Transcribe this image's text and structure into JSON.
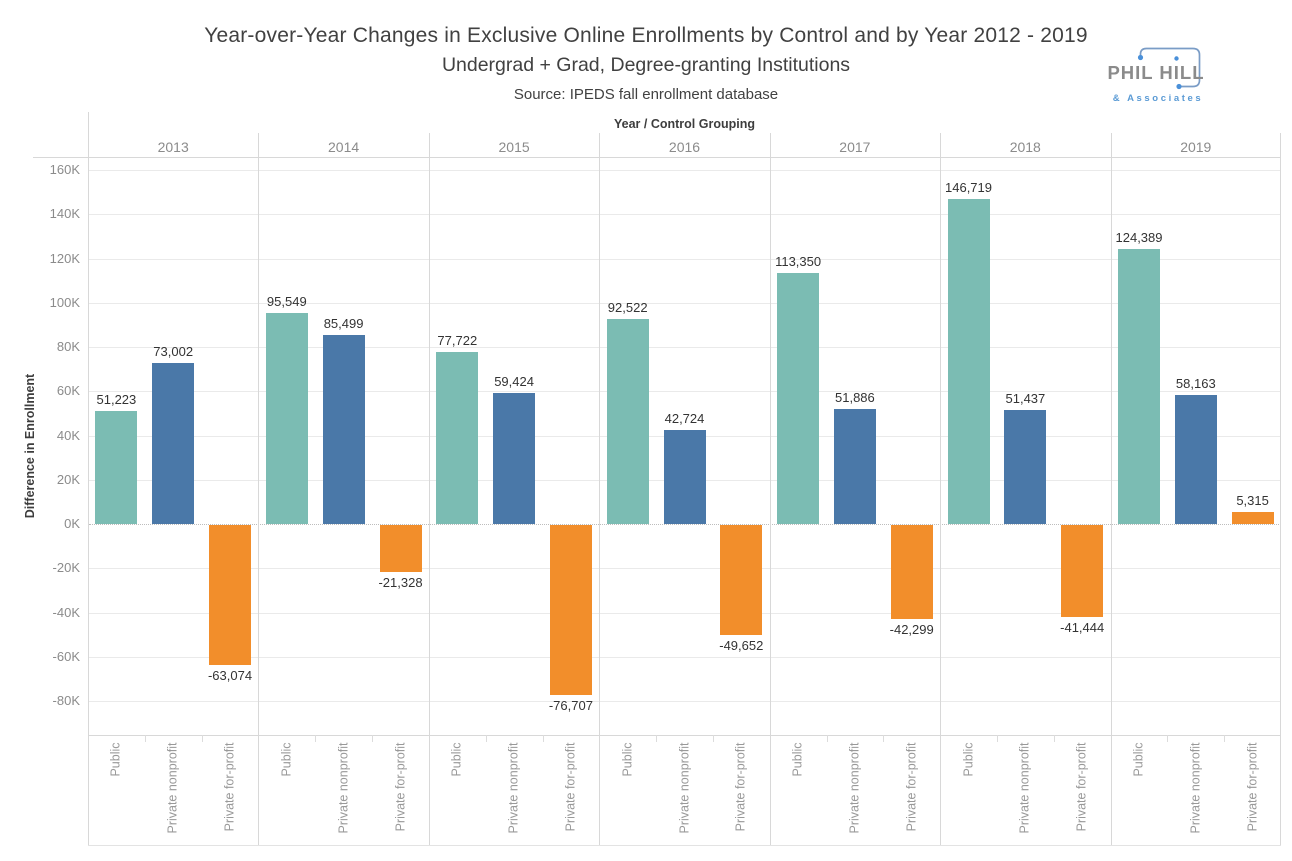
{
  "header": {
    "title": "Year-over-Year Changes in Exclusive Online Enrollments by Control and by Year 2012 - 2019",
    "subtitle": "Undergrad + Grad, Degree-granting Institutions",
    "source": "Source: IPEDS fall enrollment database"
  },
  "brand": {
    "name": "PHIL HILL",
    "tagline": "& Associates",
    "text_color": "#8b8b8b",
    "accent_color": "#5b9bd5"
  },
  "chart_data": {
    "type": "bar",
    "col_header": "Year / Control Grouping",
    "ylabel": "Difference in Enrollment",
    "yticks": [
      "160K",
      "140K",
      "120K",
      "100K",
      "80K",
      "60K",
      "40K",
      "20K",
      "0K",
      "-20K",
      "-40K",
      "-60K",
      "-80K"
    ],
    "ylim": [
      -95000,
      166000
    ],
    "grid": true,
    "legend_position": "none",
    "categories": [
      "Public",
      "Private nonprofit",
      "Private for-profit"
    ],
    "series_colors": {
      "Public": "#7bbcb3",
      "Private nonprofit": "#4a78a8",
      "Private for-profit": "#f28e2b"
    },
    "groups": [
      {
        "year": "2013",
        "values": [
          51223,
          73002,
          -63074
        ]
      },
      {
        "year": "2014",
        "values": [
          95549,
          85499,
          -21328
        ]
      },
      {
        "year": "2015",
        "values": [
          77722,
          59424,
          -76707
        ]
      },
      {
        "year": "2016",
        "values": [
          92522,
          42724,
          -49652
        ]
      },
      {
        "year": "2017",
        "values": [
          113350,
          51886,
          -42299
        ]
      },
      {
        "year": "2018",
        "values": [
          146719,
          51437,
          -41444
        ]
      },
      {
        "year": "2019",
        "values": [
          124389,
          58163,
          5315
        ]
      }
    ]
  }
}
